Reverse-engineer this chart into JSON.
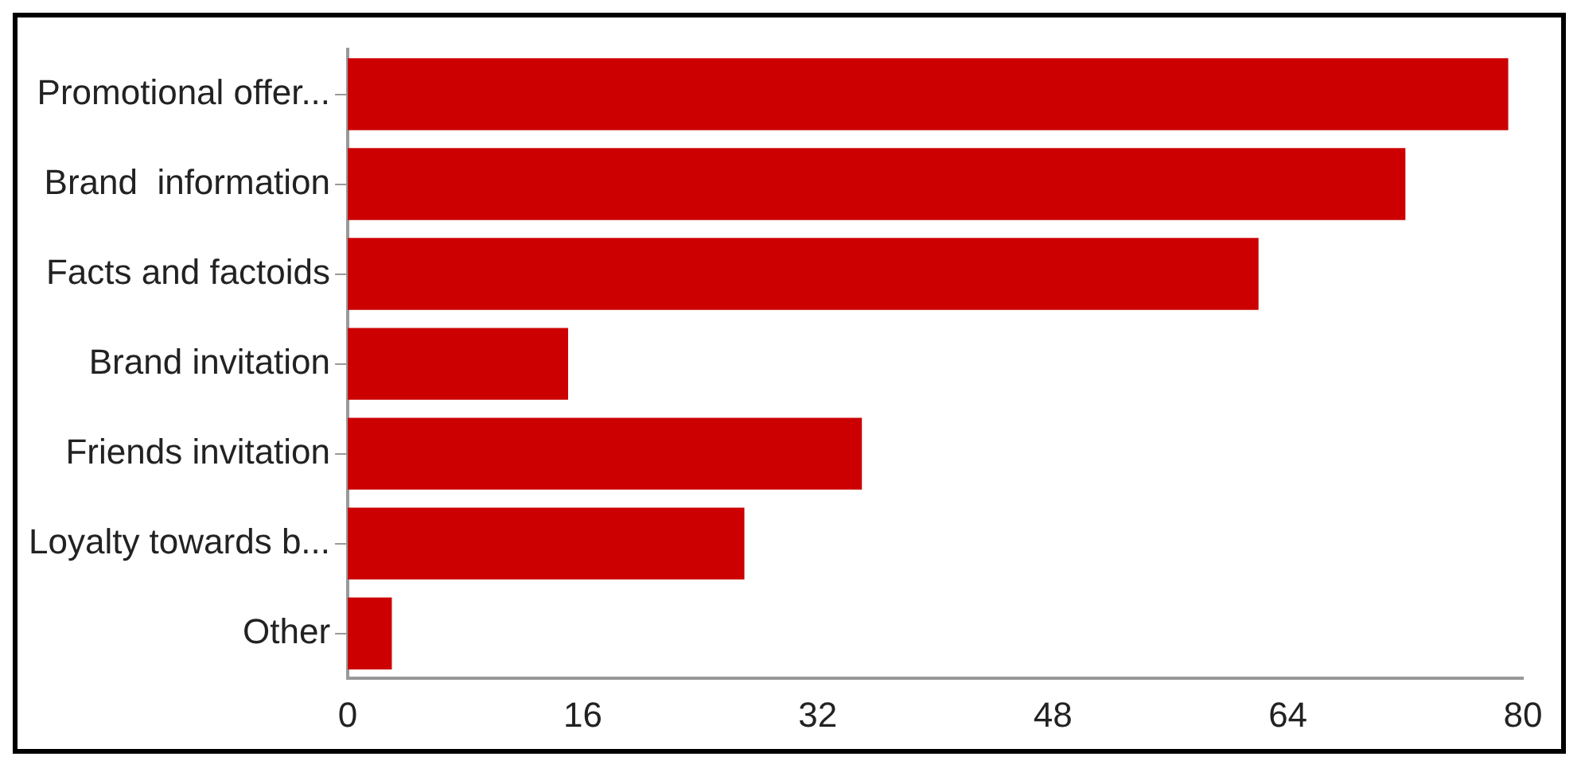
{
  "chart_data": {
    "type": "bar",
    "orientation": "horizontal",
    "categories": [
      "Promotional offer...",
      "Brand  information",
      "Facts and factoids",
      "Brand invitation",
      "Friends invitation",
      "Loyalty towards b...",
      "Other"
    ],
    "values": [
      79,
      72,
      62,
      15,
      35,
      27,
      3
    ],
    "color": "#cc0000",
    "xlim": [
      0,
      80
    ],
    "xticks": [
      0,
      16,
      32,
      48,
      64,
      80
    ],
    "grid": false,
    "legend": false
  }
}
